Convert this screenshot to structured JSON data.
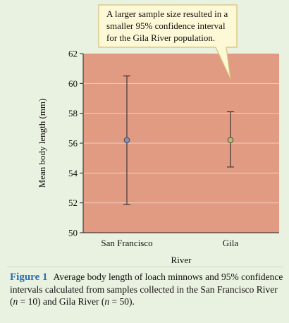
{
  "chart_data": {
    "type": "scatter",
    "style": "point-with-error-bars",
    "categories": [
      "San Francisco",
      "Gila"
    ],
    "means": [
      56.2,
      56.2
    ],
    "ci_lower": [
      51.9,
      54.4
    ],
    "ci_upper": [
      60.5,
      58.1
    ],
    "xlabel": "River",
    "ylabel": "Mean body length (mm)",
    "ylim": [
      50,
      62
    ],
    "yticks": [
      50,
      52,
      54,
      56,
      58,
      60,
      62
    ],
    "grid": true,
    "plot_background": "#e19b82",
    "grid_color": "#f4cdbd",
    "point_colors": [
      "#7f93c4",
      "#b9b874"
    ],
    "annotation": {
      "lines": [
        "A larger sample size resulted in a",
        "smaller 95% confidence interval",
        "for the Gila River population."
      ],
      "box_fill": "#fdf9d7",
      "box_border": "#d8c07a",
      "points_to": "Gila"
    }
  },
  "caption": {
    "label": "Figure 1",
    "text_1": "Average body length of loach minnows and 95% confidence intervals calculated from samples collected in the San Francisco River (",
    "n_var_1": "n",
    "text_2": " = 10) and Gila River (",
    "n_var_2": "n",
    "text_3": " = 50)."
  }
}
